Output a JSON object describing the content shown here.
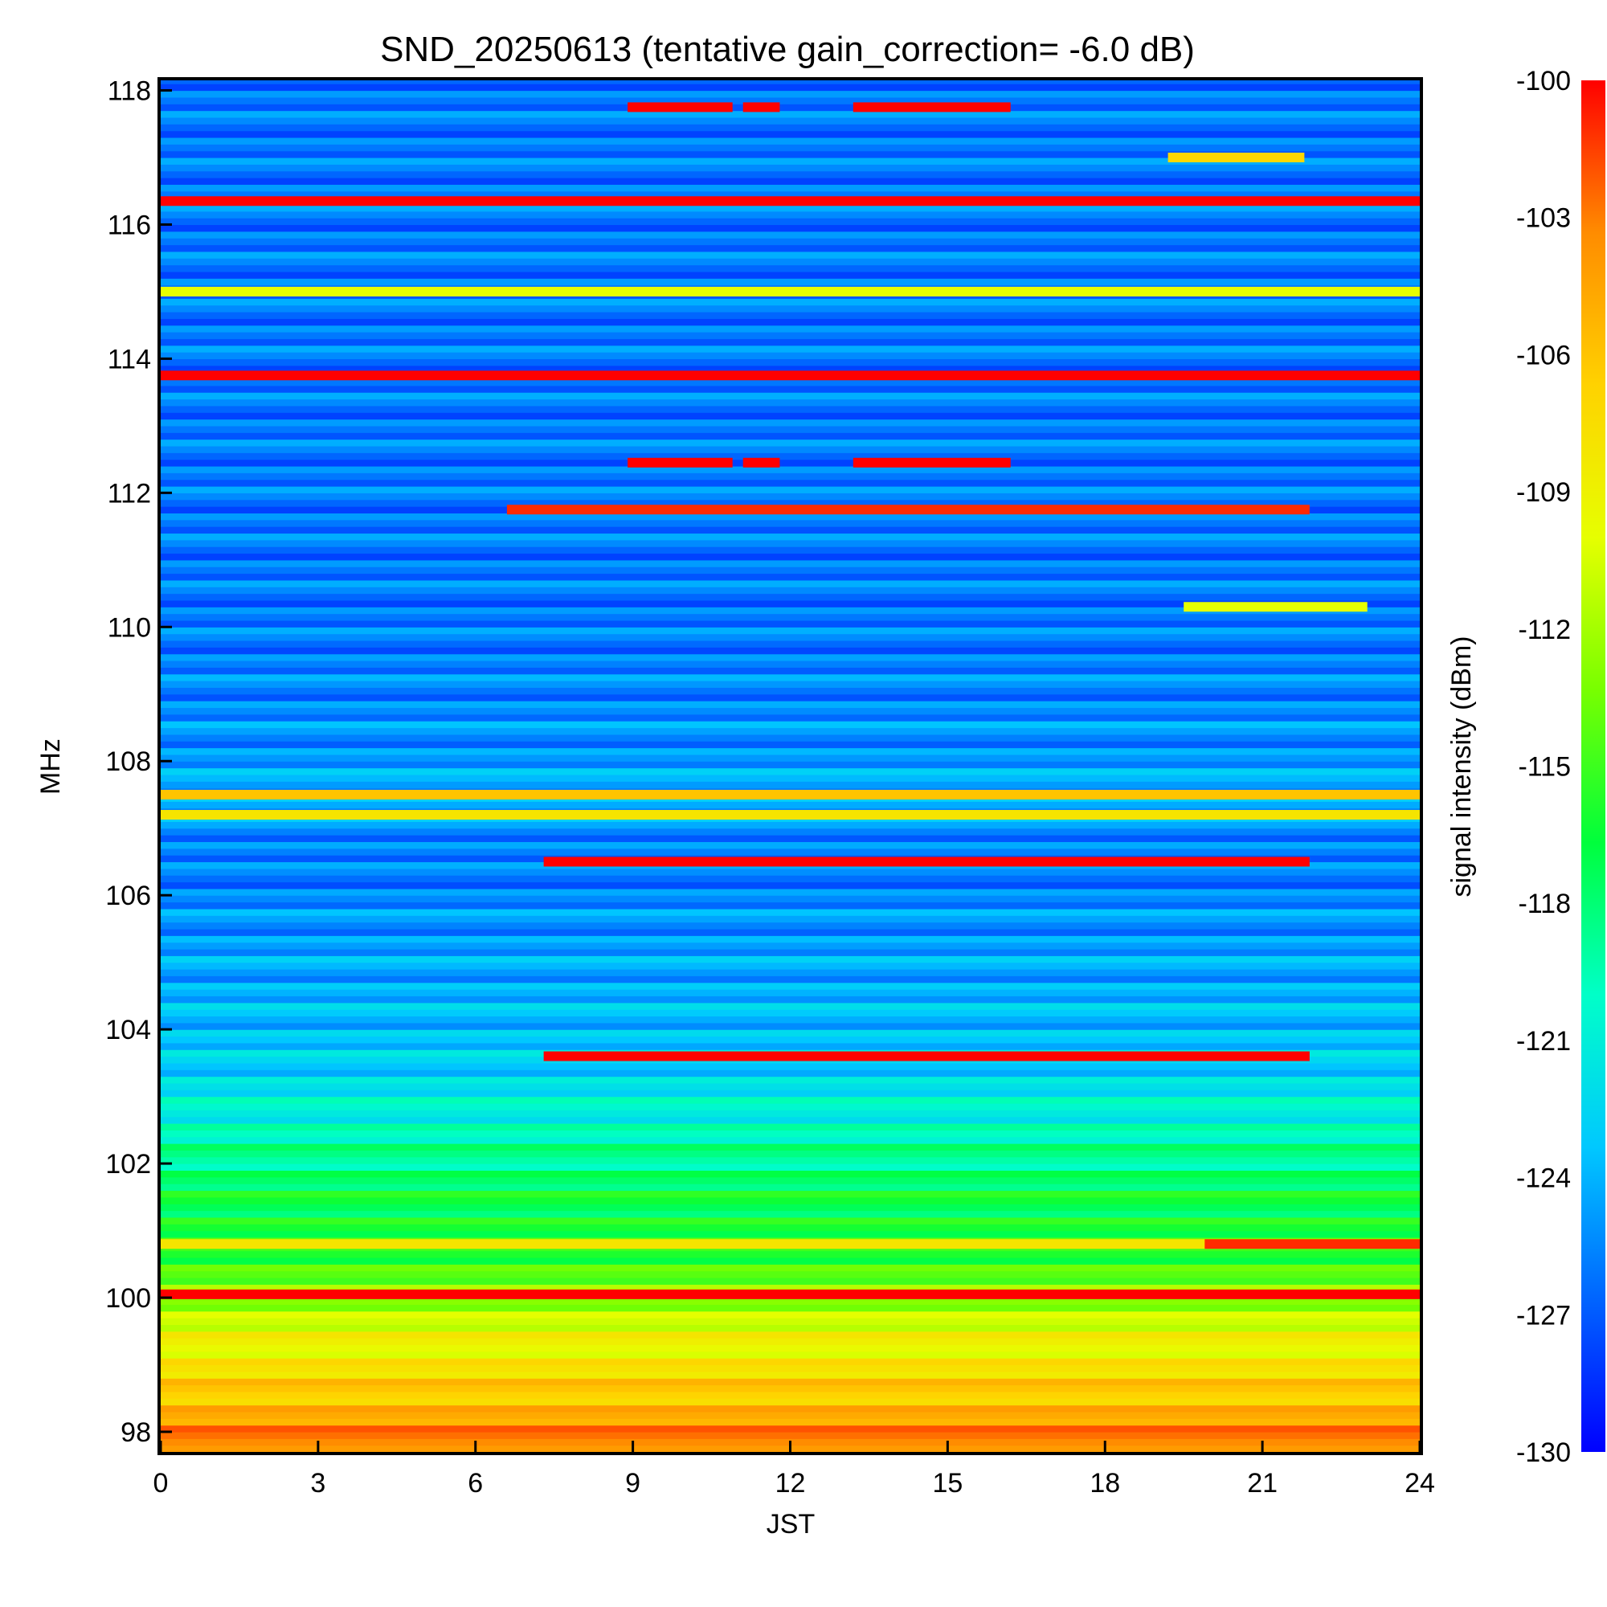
{
  "chart_data": {
    "type": "heatmap",
    "title": "SND_20250613 (tentative gain_correction= -6.0 dB)",
    "xlabel": "JST",
    "ylabel": "MHz",
    "colorbar_label": "signal intensity (dBm)",
    "xlim": [
      0,
      24
    ],
    "ylim": [
      97.7,
      118.15
    ],
    "x_ticks": [
      "0",
      "3",
      "6",
      "9",
      "12",
      "15",
      "18",
      "21",
      "24"
    ],
    "y_ticks": [
      "98",
      "100",
      "102",
      "104",
      "106",
      "108",
      "110",
      "112",
      "114",
      "116",
      "118"
    ],
    "colorbar_range": [
      -130,
      -100
    ],
    "colorbar_ticks": [
      "-100",
      "-103",
      "-106",
      "-109",
      "-112",
      "-115",
      "-118",
      "-121",
      "-124",
      "-127",
      "-130"
    ],
    "colormap": [
      "#0000ff",
      "#0064ff",
      "#00c8ff",
      "#00ffc8",
      "#00ff3c",
      "#78ff00",
      "#e6ff00",
      "#ffd200",
      "#ff8c00",
      "#ff0000"
    ],
    "background_profile": [
      {
        "freq": 97.7,
        "dbm": -102
      },
      {
        "freq": 98.5,
        "dbm": -106
      },
      {
        "freq": 99.5,
        "dbm": -110
      },
      {
        "freq": 100.5,
        "dbm": -115
      },
      {
        "freq": 101.5,
        "dbm": -117
      },
      {
        "freq": 102.5,
        "dbm": -120
      },
      {
        "freq": 103.5,
        "dbm": -123
      },
      {
        "freq": 104.5,
        "dbm": -124
      },
      {
        "freq": 105.5,
        "dbm": -125
      },
      {
        "freq": 106.5,
        "dbm": -126
      },
      {
        "freq": 107.5,
        "dbm": -124
      },
      {
        "freq": 108.1,
        "dbm": -125
      },
      {
        "freq": 110,
        "dbm": -126
      },
      {
        "freq": 114,
        "dbm": -126
      },
      {
        "freq": 118.15,
        "dbm": -126
      }
    ],
    "signals": [
      {
        "freq": 100.05,
        "dbm": -100,
        "t_start": 0,
        "t_end": 24
      },
      {
        "freq": 103.6,
        "dbm": -100,
        "t_start": 7.3,
        "t_end": 21.9
      },
      {
        "freq": 106.5,
        "dbm": -100,
        "t_start": 7.3,
        "t_end": 21.9
      },
      {
        "freq": 107.5,
        "dbm": -106,
        "t_start": 0,
        "t_end": 24
      },
      {
        "freq": 107.2,
        "dbm": -108,
        "t_start": 0,
        "t_end": 24
      },
      {
        "freq": 100.8,
        "dbm": -108,
        "t_start": 0,
        "t_end": 24
      },
      {
        "freq": 100.8,
        "dbm": -101,
        "t_start": 19.9,
        "t_end": 24
      },
      {
        "freq": 113.75,
        "dbm": -100,
        "t_start": 0,
        "t_end": 24
      },
      {
        "freq": 115.0,
        "dbm": -110,
        "t_start": 0,
        "t_end": 24
      },
      {
        "freq": 116.35,
        "dbm": -100,
        "t_start": 0,
        "t_end": 24
      },
      {
        "freq": 111.75,
        "dbm": -101,
        "t_start": 6.6,
        "t_end": 21.9
      },
      {
        "freq": 112.45,
        "dbm": -100,
        "t_start": 8.9,
        "t_end": 10.9
      },
      {
        "freq": 112.45,
        "dbm": -100,
        "t_start": 11.1,
        "t_end": 11.8
      },
      {
        "freq": 112.45,
        "dbm": -100,
        "t_start": 13.2,
        "t_end": 16.2
      },
      {
        "freq": 117.75,
        "dbm": -100,
        "t_start": 8.9,
        "t_end": 10.9
      },
      {
        "freq": 117.75,
        "dbm": -100,
        "t_start": 11.1,
        "t_end": 11.8
      },
      {
        "freq": 117.75,
        "dbm": -100,
        "t_start": 13.2,
        "t_end": 16.2
      },
      {
        "freq": 117.0,
        "dbm": -107,
        "t_start": 19.2,
        "t_end": 21.8
      },
      {
        "freq": 110.3,
        "dbm": -110,
        "t_start": 19.5,
        "t_end": 23.0
      }
    ],
    "grid": false
  }
}
